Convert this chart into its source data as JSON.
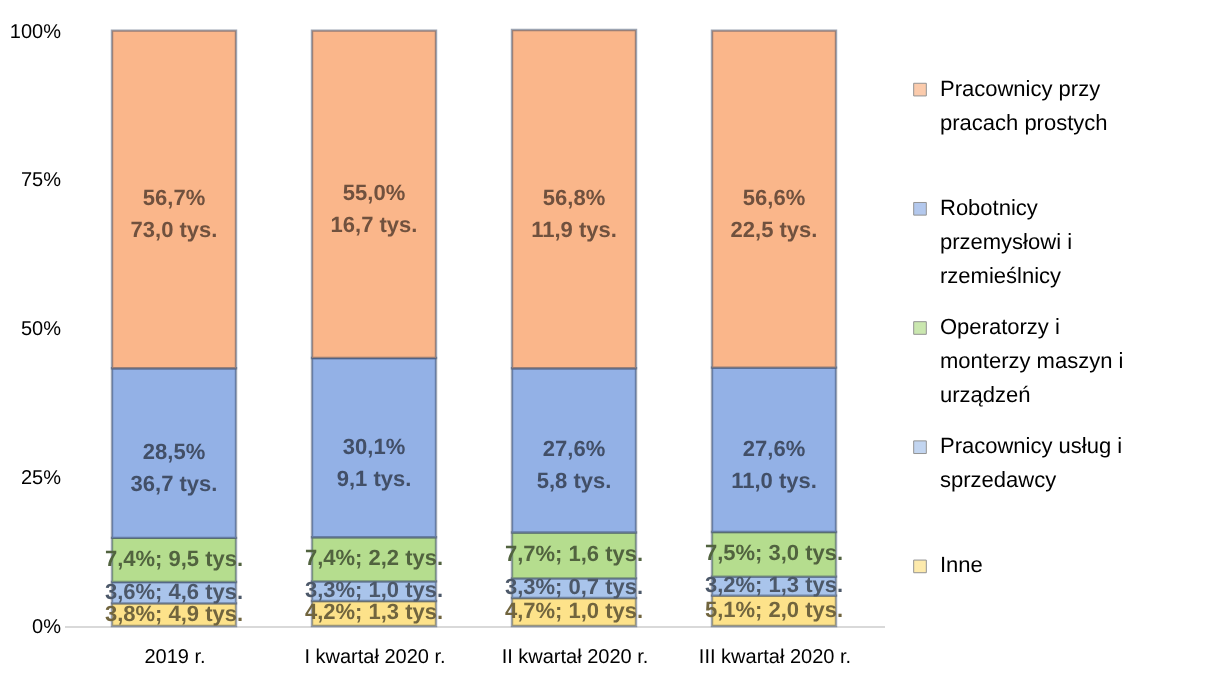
{
  "chart_data": {
    "type": "bar",
    "stacked": true,
    "categories": [
      "2019 r.",
      "I kwartał 2020 r.",
      "II kwartał 2020 r.",
      "III kwartał 2020 r."
    ],
    "series": [
      {
        "name": "Inne",
        "color": "#fde28a",
        "values": [
          3.8,
          4.2,
          4.7,
          5.1
        ],
        "value_labels": [
          "3,8%; 4,9 tys.",
          "4,2%; 1,3 tys.",
          "4,7%; 1,0 tys.",
          "5,1%; 2,0 tys."
        ]
      },
      {
        "name": "Pracownicy usług i sprzedawcy",
        "color": "#a9c4eb",
        "values": [
          3.6,
          3.3,
          3.3,
          3.2
        ],
        "value_labels": [
          "3,6%; 4,6 tys.",
          "3,3%; 1,0 tys.",
          "3,3%; 0,7 tys.",
          "3,2%; 1,3 tys."
        ]
      },
      {
        "name": "Operatorzy i monterzy maszyn i urządzeń",
        "color": "#b5dd8e",
        "values": [
          7.4,
          7.4,
          7.7,
          7.5
        ],
        "value_labels": [
          "7,4%; 9,5 tys.",
          "7,4%; 2,2 tys.",
          "7,7%; 1,6 tys.",
          "7,5%; 3,0 tys."
        ]
      },
      {
        "name": "Robotnicy przemysłowi i rzemieślnicy",
        "color": "#93b1e6",
        "values": [
          28.5,
          30.1,
          27.6,
          27.6
        ],
        "value_labels": [
          "28,5%\n36,7 tys.",
          "30,1%\n9,1 tys.",
          "27,6%\n5,8 tys.",
          "27,6%\n11,0 tys."
        ]
      },
      {
        "name": "Pracownicy przy pracach prostych",
        "color": "#fab68a",
        "values": [
          56.7,
          55.0,
          56.8,
          56.6
        ],
        "value_labels": [
          "56,7%\n73,0 tys.",
          "55,0%\n16,7 tys.",
          "56,8%\n11,9 tys.",
          "56,6%\n22,5 tys."
        ]
      }
    ],
    "ylim": [
      0,
      100.1
    ],
    "yticks": [
      {
        "value": 0,
        "label": "0%"
      },
      {
        "value": 25,
        "label": "25%"
      },
      {
        "value": 50,
        "label": "50%"
      },
      {
        "value": 75,
        "label": "75%"
      },
      {
        "value": 100,
        "label": "100%"
      }
    ],
    "grid": false,
    "legend": "right"
  }
}
